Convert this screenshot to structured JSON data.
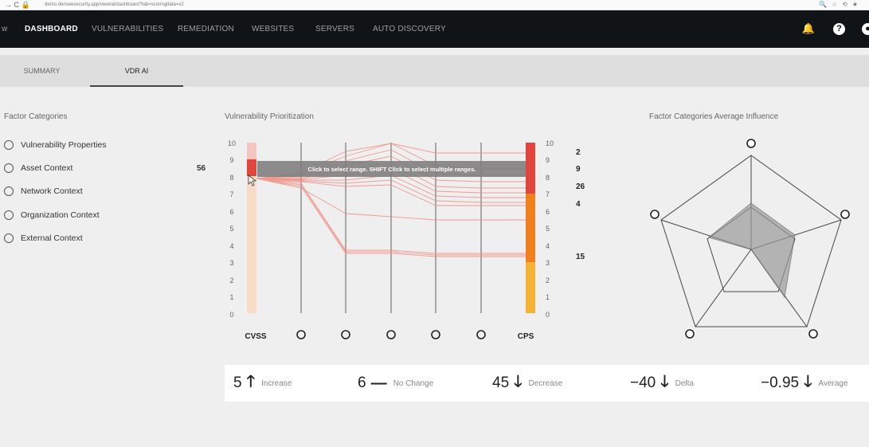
{
  "browser": {
    "url": "demo.denseesecurity.app/view/at/dashboard?tab=scoringdata=v2"
  },
  "nav": {
    "partial_left": "w",
    "items": [
      "DASHBOARD",
      "VULNERABILITIES",
      "REMEDIATION",
      "WEBSITES",
      "SERVERS",
      "AUTO DISCOVERY"
    ],
    "active": "DASHBOARD"
  },
  "tabs": [
    "SUMMARY",
    "VDR AI"
  ],
  "active_tab": "VDR AI",
  "factor_categories": {
    "title": "Factor Categories",
    "items": [
      "Vulnerability Properties",
      "Asset Context",
      "Network Context",
      "Organization Context",
      "External Context"
    ],
    "asset_badge": "56"
  },
  "vuln_prioritization": {
    "title": "Vulnerability Prioritization",
    "axis_ticks": [
      "10",
      "9",
      "8",
      "7",
      "6",
      "5",
      "4",
      "3",
      "2",
      "1",
      "0"
    ],
    "left_axis_label": "CVSS",
    "right_axis_label": "CPS",
    "tooltip": "Click to select range. SHIFT Click to select multiple ranges.",
    "counts": [
      "2",
      "9",
      "26",
      "4",
      "15"
    ]
  },
  "radar": {
    "title": "Factor Categories Average Influence"
  },
  "stats": [
    {
      "value": "5",
      "arrow": "🡑",
      "label": "Increase"
    },
    {
      "value": "6",
      "arrow": "—",
      "label": "No Change"
    },
    {
      "value": "45",
      "arrow": "🡓",
      "label": "Decrease"
    },
    {
      "value": "−40",
      "arrow": "🡓",
      "label": "Delta"
    },
    {
      "value": "−0.95",
      "arrow": "🡓",
      "label": "Average"
    }
  ],
  "colors": {
    "nav_bg": "#111417",
    "cvss_selected": "#e0463c",
    "cps_high": "#e0463c",
    "cps_mid": "#f07f1e",
    "cps_low": "#f5b234"
  }
}
